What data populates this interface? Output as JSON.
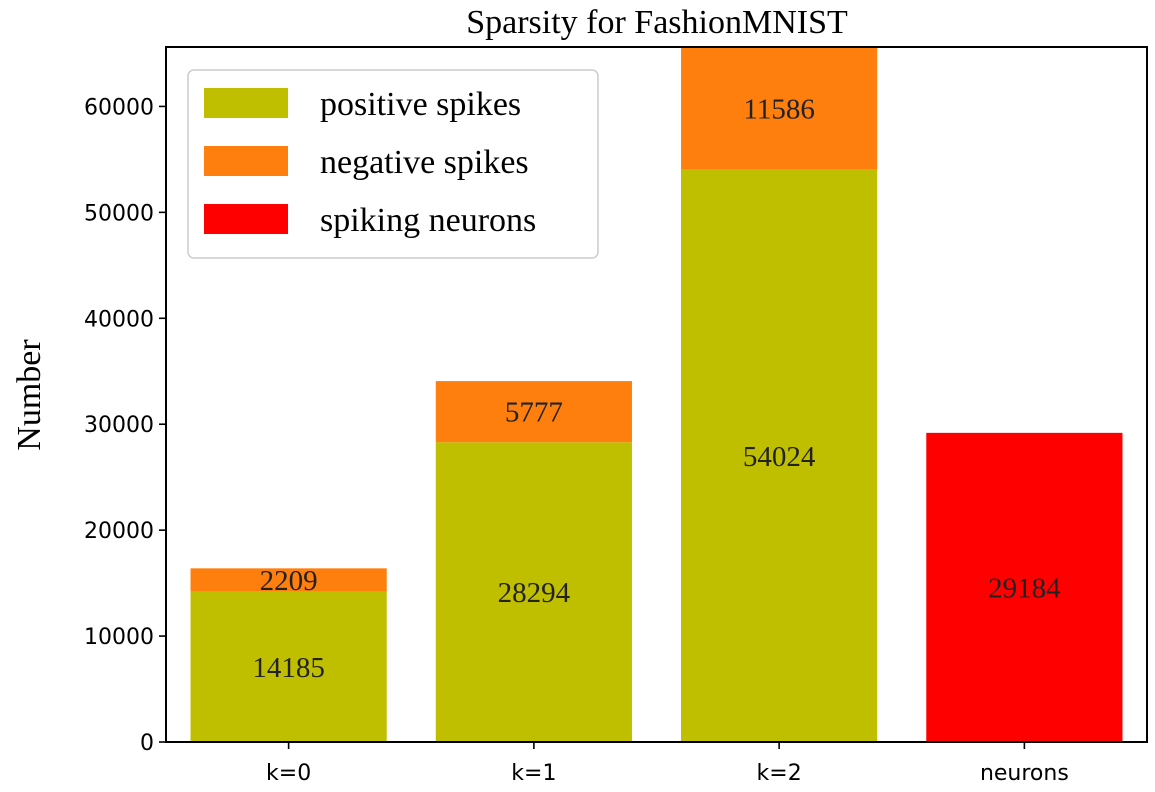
{
  "chart_data": {
    "type": "bar",
    "stacked": true,
    "title": "Sparsity for FashionMNIST",
    "xlabel": "",
    "ylabel": "Number",
    "categories": [
      "k=0",
      "k=1",
      "k=2",
      "neurons"
    ],
    "ylim": [
      0,
      65610
    ],
    "yticks": [
      0,
      10000,
      20000,
      30000,
      40000,
      50000,
      60000
    ],
    "series": [
      {
        "name": "positive spikes",
        "color": "#bfbf00",
        "values": [
          14185,
          28294,
          54024,
          null
        ]
      },
      {
        "name": "negative spikes",
        "color": "#ff7f0e",
        "values": [
          2209,
          5777,
          11586,
          null
        ]
      },
      {
        "name": "spiking neurons",
        "color": "#ff0000",
        "values": [
          null,
          null,
          null,
          29184
        ]
      }
    ],
    "data_labels": [
      {
        "category": "k=0",
        "series": "positive spikes",
        "text": "14185"
      },
      {
        "category": "k=0",
        "series": "negative spikes",
        "text": "2209"
      },
      {
        "category": "k=1",
        "series": "positive spikes",
        "text": "28294"
      },
      {
        "category": "k=1",
        "series": "negative spikes",
        "text": "5777"
      },
      {
        "category": "k=2",
        "series": "positive spikes",
        "text": "54024"
      },
      {
        "category": "k=2",
        "series": "negative spikes",
        "text": "11586"
      },
      {
        "category": "neurons",
        "series": "spiking neurons",
        "text": "29184"
      }
    ],
    "legend": {
      "placement": "top-left",
      "entries": [
        "positive spikes",
        "negative spikes",
        "spiking neurons"
      ]
    },
    "grid": false
  }
}
